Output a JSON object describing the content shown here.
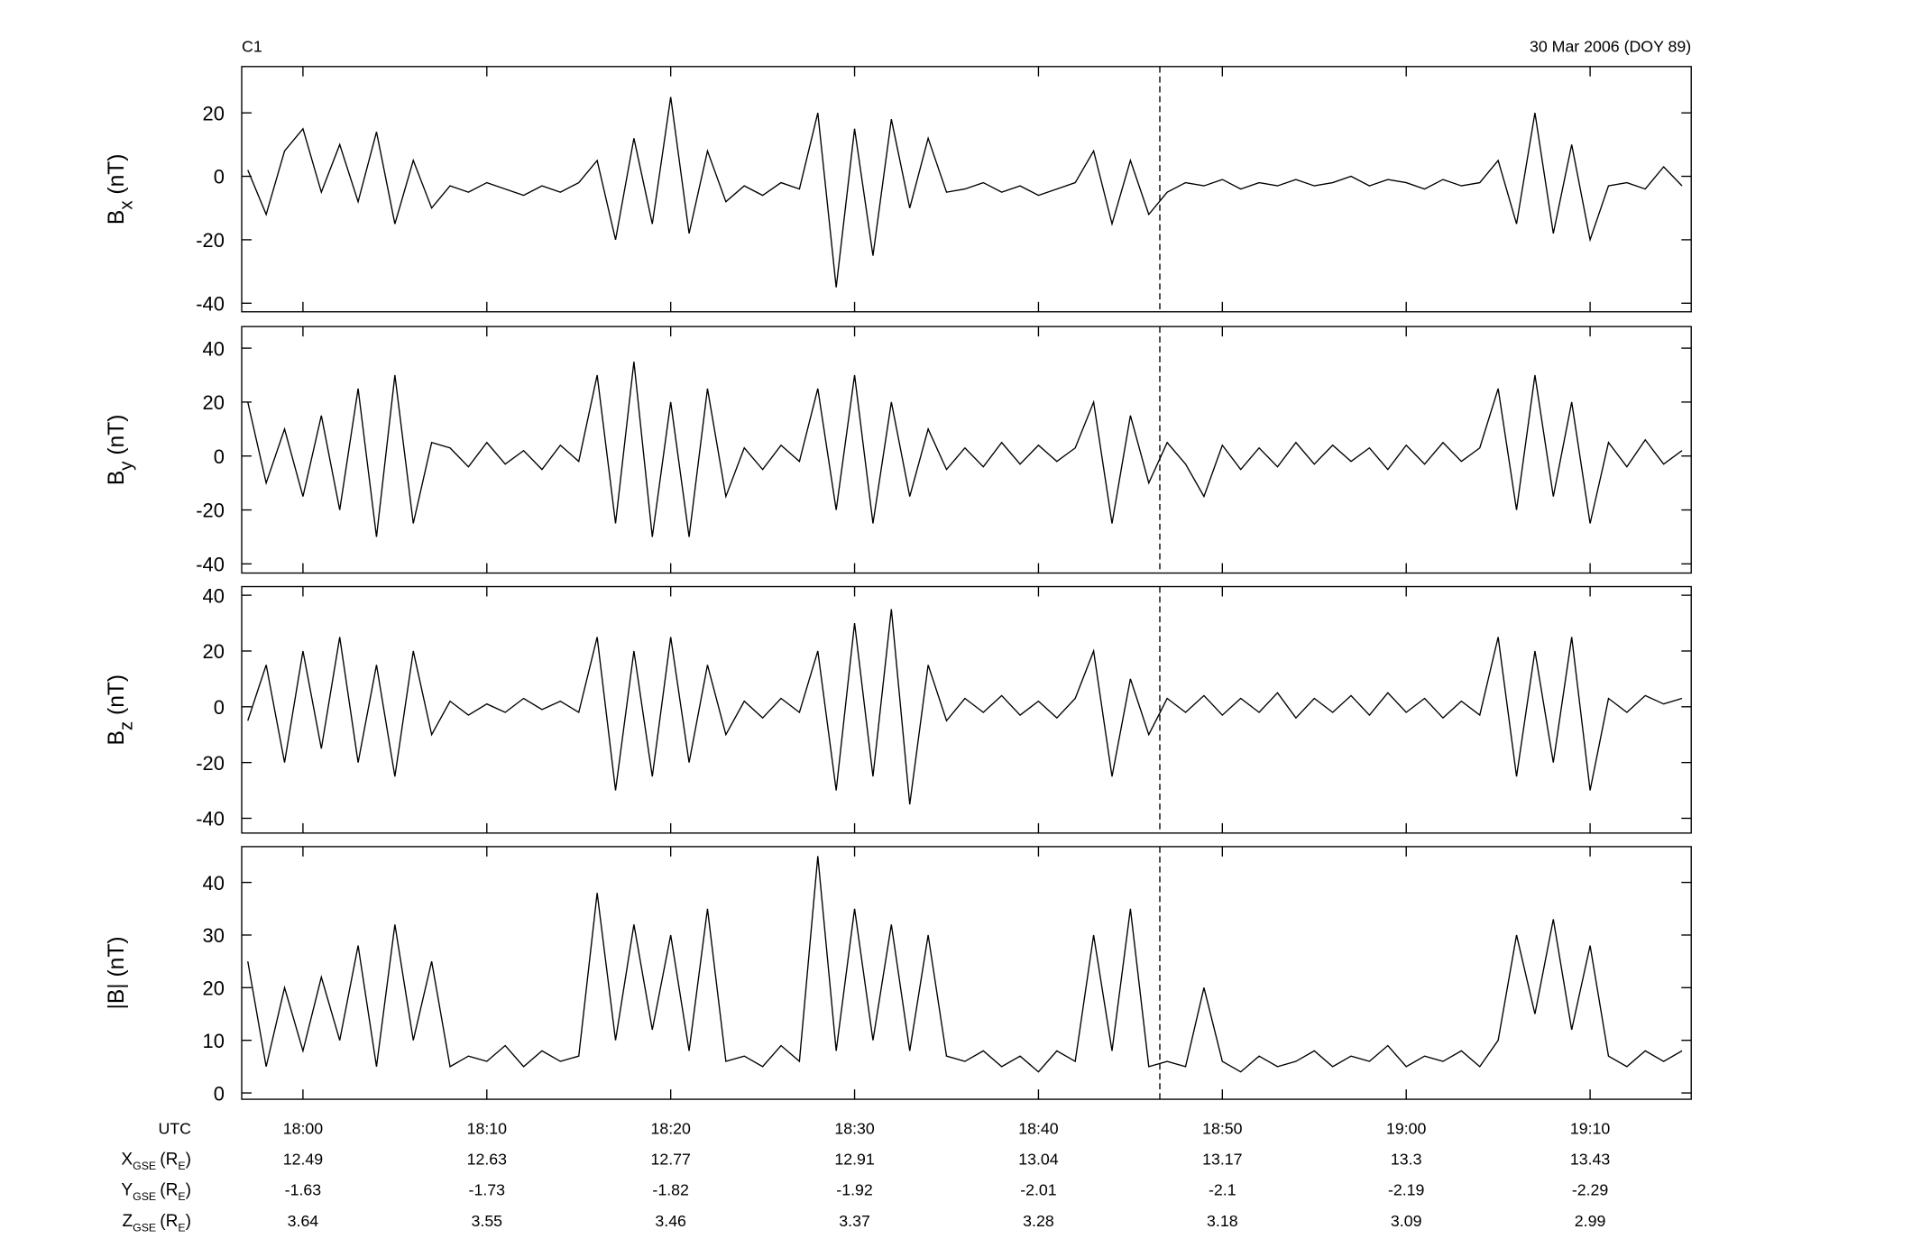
{
  "header": {
    "left": "C1",
    "right": "30 Mar 2006 (DOY 89)"
  },
  "chart_data": [
    {
      "type": "line",
      "ylabel": {
        "main": "B",
        "sub": "x",
        "unit": "(nT)"
      },
      "color": "#000000",
      "xlim": [
        1076.67,
        1155.5
      ],
      "ylim": [
        -42.7,
        34.6
      ],
      "yticks": [
        -40,
        -20,
        0,
        20
      ],
      "vline": 1126.6,
      "x": [
        1077,
        1078,
        1079,
        1080,
        1081,
        1082,
        1083,
        1084,
        1085,
        1086,
        1087,
        1088,
        1089,
        1090,
        1091,
        1092,
        1093,
        1094,
        1095,
        1096,
        1097,
        1098,
        1099,
        1100,
        1101,
        1102,
        1103,
        1104,
        1105,
        1106,
        1107,
        1108,
        1109,
        1110,
        1111,
        1112,
        1113,
        1114,
        1115,
        1116,
        1117,
        1118,
        1119,
        1120,
        1121,
        1122,
        1123,
        1124,
        1125,
        1126,
        1127,
        1128,
        1129,
        1130,
        1131,
        1132,
        1133,
        1134,
        1135,
        1136,
        1137,
        1138,
        1139,
        1140,
        1141,
        1142,
        1143,
        1144,
        1145,
        1146,
        1147,
        1148,
        1149,
        1150,
        1151,
        1152,
        1153,
        1154,
        1155
      ],
      "values": [
        2,
        -12,
        8,
        15,
        -5,
        10,
        -8,
        14,
        -15,
        5,
        -10,
        -3,
        -5,
        -2,
        -4,
        -6,
        -3,
        -5,
        -2,
        5,
        -20,
        12,
        -15,
        25,
        -18,
        8,
        -8,
        -3,
        -6,
        -2,
        -4,
        20,
        -35,
        15,
        -25,
        18,
        -10,
        12,
        -5,
        -4,
        -2,
        -5,
        -3,
        -6,
        -4,
        -2,
        8,
        -15,
        5,
        -12,
        -5,
        -2,
        -3,
        -1,
        -4,
        -2,
        -3,
        -1,
        -3,
        -2,
        0,
        -3,
        -1,
        -2,
        -4,
        -1,
        -3,
        -2,
        5,
        -15,
        20,
        -18,
        10,
        -20,
        -3,
        -2,
        -4,
        3,
        -3
      ]
    },
    {
      "type": "line",
      "ylabel": {
        "main": "B",
        "sub": "y",
        "unit": "(nT)"
      },
      "color": "#000000",
      "xlim": [
        1076.67,
        1155.5
      ],
      "ylim": [
        -43.4,
        48
      ],
      "yticks": [
        -40,
        -20,
        0,
        20,
        40
      ],
      "vline": 1126.6,
      "x": [
        1077,
        1078,
        1079,
        1080,
        1081,
        1082,
        1083,
        1084,
        1085,
        1086,
        1087,
        1088,
        1089,
        1090,
        1091,
        1092,
        1093,
        1094,
        1095,
        1096,
        1097,
        1098,
        1099,
        1100,
        1101,
        1102,
        1103,
        1104,
        1105,
        1106,
        1107,
        1108,
        1109,
        1110,
        1111,
        1112,
        1113,
        1114,
        1115,
        1116,
        1117,
        1118,
        1119,
        1120,
        1121,
        1122,
        1123,
        1124,
        1125,
        1126,
        1127,
        1128,
        1129,
        1130,
        1131,
        1132,
        1133,
        1134,
        1135,
        1136,
        1137,
        1138,
        1139,
        1140,
        1141,
        1142,
        1143,
        1144,
        1145,
        1146,
        1147,
        1148,
        1149,
        1150,
        1151,
        1152,
        1153,
        1154,
        1155
      ],
      "values": [
        20,
        -10,
        10,
        -15,
        15,
        -20,
        25,
        -30,
        30,
        -25,
        5,
        3,
        -4,
        5,
        -3,
        2,
        -5,
        4,
        -2,
        30,
        -25,
        35,
        -30,
        20,
        -30,
        25,
        -15,
        3,
        -5,
        4,
        -2,
        25,
        -20,
        30,
        -25,
        20,
        -15,
        10,
        -5,
        3,
        -4,
        5,
        -3,
        4,
        -2,
        3,
        20,
        -25,
        15,
        -10,
        5,
        -3,
        -15,
        4,
        -5,
        3,
        -4,
        5,
        -3,
        4,
        -2,
        3,
        -5,
        4,
        -3,
        5,
        -2,
        3,
        25,
        -20,
        30,
        -15,
        20,
        -25,
        5,
        -4,
        6,
        -3,
        2
      ]
    },
    {
      "type": "line",
      "ylabel": {
        "main": "B",
        "sub": "z",
        "unit": "(nT)"
      },
      "color": "#000000",
      "xlim": [
        1076.67,
        1155.5
      ],
      "ylim": [
        -45.3,
        43.1
      ],
      "yticks": [
        -40,
        -20,
        0,
        20,
        40
      ],
      "vline": 1126.6,
      "x": [
        1077,
        1078,
        1079,
        1080,
        1081,
        1082,
        1083,
        1084,
        1085,
        1086,
        1087,
        1088,
        1089,
        1090,
        1091,
        1092,
        1093,
        1094,
        1095,
        1096,
        1097,
        1098,
        1099,
        1100,
        1101,
        1102,
        1103,
        1104,
        1105,
        1106,
        1107,
        1108,
        1109,
        1110,
        1111,
        1112,
        1113,
        1114,
        1115,
        1116,
        1117,
        1118,
        1119,
        1120,
        1121,
        1122,
        1123,
        1124,
        1125,
        1126,
        1127,
        1128,
        1129,
        1130,
        1131,
        1132,
        1133,
        1134,
        1135,
        1136,
        1137,
        1138,
        1139,
        1140,
        1141,
        1142,
        1143,
        1144,
        1145,
        1146,
        1147,
        1148,
        1149,
        1150,
        1151,
        1152,
        1153,
        1154,
        1155
      ],
      "values": [
        -5,
        15,
        -20,
        20,
        -15,
        25,
        -20,
        15,
        -25,
        20,
        -10,
        2,
        -3,
        1,
        -2,
        3,
        -1,
        2,
        -2,
        25,
        -30,
        20,
        -25,
        25,
        -20,
        15,
        -10,
        2,
        -4,
        3,
        -2,
        20,
        -30,
        30,
        -25,
        35,
        -35,
        15,
        -5,
        3,
        -2,
        4,
        -3,
        2,
        -4,
        3,
        20,
        -25,
        10,
        -10,
        3,
        -2,
        4,
        -3,
        3,
        -2,
        5,
        -4,
        3,
        -2,
        4,
        -3,
        5,
        -2,
        3,
        -4,
        2,
        -3,
        25,
        -25,
        20,
        -20,
        25,
        -30,
        3,
        -2,
        4,
        1,
        3
      ]
    },
    {
      "type": "line",
      "ylabel": {
        "main": "|B| (nT)"
      },
      "color": "#000000",
      "xlim": [
        1076.67,
        1155.5
      ],
      "ylim": [
        -1.2,
        46.8
      ],
      "yticks": [
        0,
        10,
        20,
        30,
        40
      ],
      "vline": 1126.6,
      "xticks": [
        {
          "value": 1080,
          "label": "18:00"
        },
        {
          "value": 1090,
          "label": "18:10"
        },
        {
          "value": 1100,
          "label": "18:20"
        },
        {
          "value": 1110,
          "label": "18:30"
        },
        {
          "value": 1120,
          "label": "18:40"
        },
        {
          "value": 1130,
          "label": "18:50"
        },
        {
          "value": 1140,
          "label": "19:00"
        },
        {
          "value": 1150,
          "label": "19:10"
        }
      ],
      "x": [
        1077,
        1078,
        1079,
        1080,
        1081,
        1082,
        1083,
        1084,
        1085,
        1086,
        1087,
        1088,
        1089,
        1090,
        1091,
        1092,
        1093,
        1094,
        1095,
        1096,
        1097,
        1098,
        1099,
        1100,
        1101,
        1102,
        1103,
        1104,
        1105,
        1106,
        1107,
        1108,
        1109,
        1110,
        1111,
        1112,
        1113,
        1114,
        1115,
        1116,
        1117,
        1118,
        1119,
        1120,
        1121,
        1122,
        1123,
        1124,
        1125,
        1126,
        1127,
        1128,
        1129,
        1130,
        1131,
        1132,
        1133,
        1134,
        1135,
        1136,
        1137,
        1138,
        1139,
        1140,
        1141,
        1142,
        1143,
        1144,
        1145,
        1146,
        1147,
        1148,
        1149,
        1150,
        1151,
        1152,
        1153,
        1154,
        1155
      ],
      "values": [
        25,
        5,
        20,
        8,
        22,
        10,
        28,
        5,
        32,
        10,
        25,
        5,
        7,
        6,
        9,
        5,
        8,
        6,
        7,
        38,
        10,
        32,
        12,
        30,
        8,
        35,
        6,
        7,
        5,
        9,
        6,
        45,
        8,
        35,
        10,
        32,
        8,
        30,
        7,
        6,
        8,
        5,
        7,
        4,
        8,
        6,
        30,
        8,
        35,
        5,
        6,
        5,
        20,
        6,
        4,
        7,
        5,
        6,
        8,
        5,
        7,
        6,
        9,
        5,
        7,
        6,
        8,
        5,
        10,
        30,
        15,
        33,
        12,
        28,
        7,
        5,
        8,
        6,
        8
      ]
    }
  ],
  "ephemeris": {
    "time_label": "UTC",
    "rows": [
      {
        "label": {
          "main": "X",
          "sub": "GSE",
          "open": "(R",
          "unit_sub": "E",
          "close": ")"
        },
        "values": [
          12.49,
          12.63,
          12.77,
          12.91,
          13.04,
          13.17,
          13.3,
          13.43
        ]
      },
      {
        "label": {
          "main": "Y",
          "sub": "GSE",
          "open": "(R",
          "unit_sub": "E",
          "close": ")"
        },
        "values": [
          -1.63,
          -1.73,
          -1.82,
          -1.92,
          -2.01,
          -2.1,
          -2.19,
          -2.29
        ]
      },
      {
        "label": {
          "main": "Z",
          "sub": "GSE",
          "open": "(R",
          "unit_sub": "E",
          "close": ")"
        },
        "values": [
          3.64,
          3.55,
          3.46,
          3.37,
          3.28,
          3.18,
          3.09,
          2.99
        ]
      }
    ]
  }
}
